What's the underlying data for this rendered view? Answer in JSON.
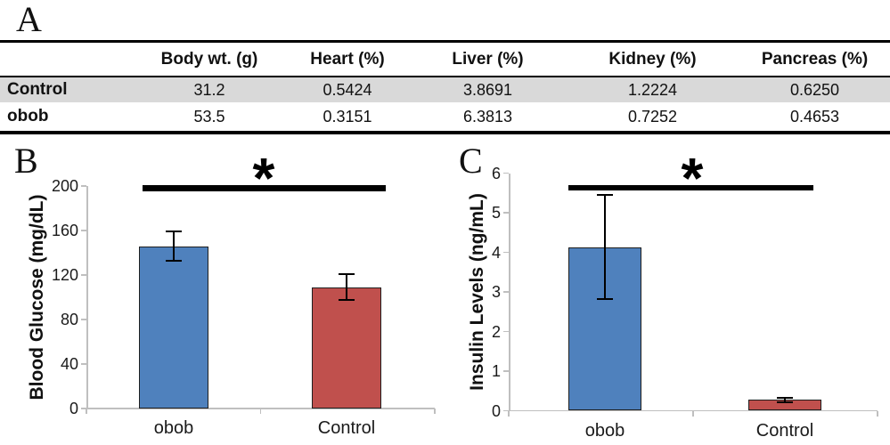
{
  "figure": {
    "panel_labels": {
      "a": "A",
      "b": "B",
      "c": "C"
    }
  },
  "table": {
    "columns": [
      "Body wt. (g)",
      "Heart (%)",
      "Liver (%)",
      "Kidney (%)",
      "Pancreas (%)"
    ],
    "rows": [
      {
        "label": "Control",
        "values": [
          "31.2",
          "0.5424",
          "3.8691",
          "1.2224",
          "0.6250"
        ]
      },
      {
        "label": "obob",
        "values": [
          "53.5",
          "0.3151",
          "6.3813",
          "0.7252",
          "0.4653"
        ]
      }
    ]
  },
  "chart_data": [
    {
      "id": "B",
      "type": "bar",
      "title": "",
      "categories": [
        "obob",
        "Control"
      ],
      "values": [
        146,
        109
      ],
      "errors": [
        13.5,
        11.5
      ],
      "ylabel": "Blood Glucose (mg/dL)",
      "xlabel": "",
      "ylim": [
        0,
        200
      ],
      "yticks": [
        0,
        40,
        80,
        120,
        160,
        200
      ],
      "bar_colors": [
        "#4F81BD",
        "#C0504D"
      ],
      "significance_label": "*",
      "legend": "none",
      "grid": false
    },
    {
      "id": "C",
      "type": "bar",
      "title": "",
      "categories": [
        "obob",
        "Control"
      ],
      "values": [
        4.13,
        0.27
      ],
      "errors": [
        1.32,
        0.05
      ],
      "ylabel": "Insulin Levels (ng/mL)",
      "xlabel": "",
      "ylim": [
        0,
        6
      ],
      "yticks": [
        0,
        1,
        2,
        3,
        4,
        5,
        6
      ],
      "bar_colors": [
        "#4F81BD",
        "#C0504D"
      ],
      "significance_label": "*",
      "legend": "none",
      "grid": false
    }
  ],
  "colors": {
    "bar_blue": "#4F81BD",
    "bar_red": "#C0504D",
    "table_shade": "#D9D9D9",
    "axis_gray": "#BFBFBF",
    "text": "#000000"
  }
}
